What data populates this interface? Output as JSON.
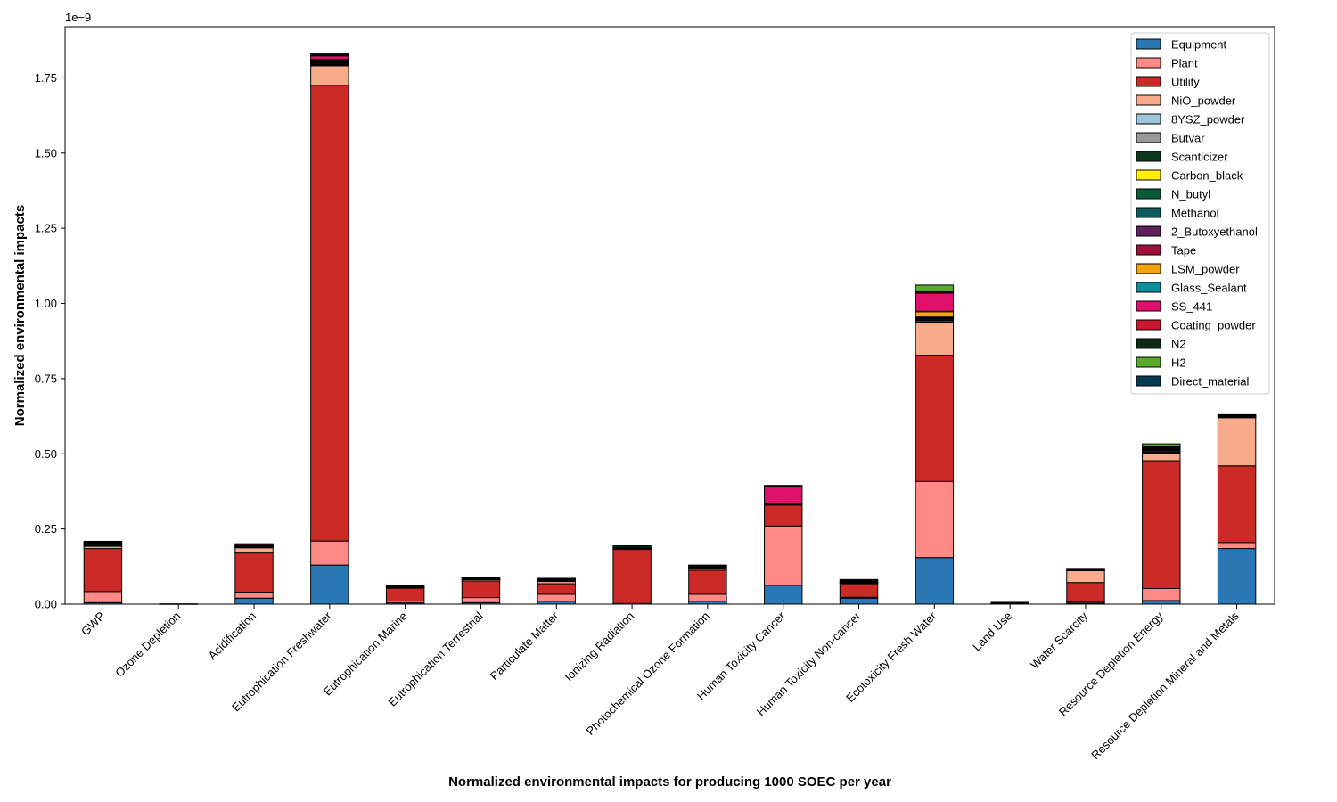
{
  "chart_data": {
    "type": "bar",
    "stacked": true,
    "title": "",
    "xlabel": "Normalized environmental impacts for producing 1000 SOEC per year",
    "ylabel": "Normalized environmental impacts",
    "y_offset_label": "1e−9",
    "y_scale_note": "values in units of 1e-9",
    "ylim": [
      0,
      1.92
    ],
    "yticks": [
      "0.00",
      "0.25",
      "0.50",
      "0.75",
      "1.00",
      "1.25",
      "1.50",
      "1.75"
    ],
    "grid": false,
    "legend_position": "top-right",
    "categories": [
      "GWP",
      "Ozone Depletion",
      "Acidification",
      "Eutrophication Freshwater",
      "Eutrophication Marine",
      "Eutrophication Terrestrial",
      "Particulate Matter",
      "Ionizing Radiation",
      "Photochemical Ozone Formation",
      "Human Toxicity Cancer",
      "Human Toxicity Non-cancer",
      "Ecotoxicity Fresh Water",
      "Land Use",
      "Water Scarcity",
      "Resource Depletion Energy",
      "Resource Depletion Mineral and Metals"
    ],
    "series": [
      {
        "name": "Equipment",
        "color": "#2a77b4",
        "values": [
          0.005,
          0.0,
          0.02,
          0.13,
          0.004,
          0.005,
          0.01,
          0.002,
          0.01,
          0.063,
          0.02,
          0.155,
          0.0,
          0.003,
          0.012,
          0.185
        ]
      },
      {
        "name": "Plant",
        "color": "#ff8a85",
        "values": [
          0.037,
          0.0,
          0.02,
          0.08,
          0.006,
          0.017,
          0.023,
          0.0,
          0.023,
          0.197,
          0.003,
          0.253,
          0.0,
          0.004,
          0.04,
          0.02
        ]
      },
      {
        "name": "Utility",
        "color": "#cc2a27",
        "values": [
          0.143,
          0.001,
          0.13,
          1.515,
          0.043,
          0.055,
          0.035,
          0.18,
          0.08,
          0.07,
          0.045,
          0.42,
          0.003,
          0.065,
          0.425,
          0.255
        ]
      },
      {
        "name": "NiO_powder",
        "color": "#f7ab8b",
        "values": [
          0.008,
          0.0,
          0.018,
          0.065,
          0.002,
          0.005,
          0.008,
          0.002,
          0.008,
          0.0,
          0.003,
          0.11,
          0.0,
          0.04,
          0.025,
          0.16
        ]
      },
      {
        "name": "8YSZ_powder",
        "color": "#9dc5dc",
        "values": [
          0.001,
          0.0,
          0.001,
          0.003,
          0.001,
          0.001,
          0.001,
          0.0,
          0.001,
          0.001,
          0.001,
          0.004,
          0.0,
          0.001,
          0.002,
          0.002
        ]
      },
      {
        "name": "Butvar",
        "color": "#999999",
        "values": [
          0.002,
          0.0,
          0.001,
          0.003,
          0.0,
          0.001,
          0.001,
          0.0,
          0.001,
          0.001,
          0.001,
          0.003,
          0.0,
          0.001,
          0.002,
          0.001
        ]
      },
      {
        "name": "Scanticizer",
        "color": "#0c3b1b",
        "values": [
          0.004,
          0.0,
          0.003,
          0.004,
          0.002,
          0.002,
          0.002,
          0.003,
          0.003,
          0.002,
          0.003,
          0.004,
          0.001,
          0.002,
          0.006,
          0.002
        ]
      },
      {
        "name": "Carbon_black",
        "color": "#ffee00",
        "values": [
          0.0,
          0.0,
          0.0,
          0.001,
          0.0,
          0.0,
          0.0,
          0.0,
          0.0,
          0.0,
          0.0,
          0.002,
          0.0,
          0.0,
          0.001,
          0.0
        ]
      },
      {
        "name": "N_butyl",
        "color": "#0a5a36",
        "values": [
          0.001,
          0.0,
          0.001,
          0.001,
          0.0,
          0.0,
          0.001,
          0.0,
          0.0,
          0.0,
          0.0,
          0.001,
          0.0,
          0.0,
          0.001,
          0.0
        ]
      },
      {
        "name": "Methanol",
        "color": "#0b5c60",
        "values": [
          0.001,
          0.0,
          0.0,
          0.001,
          0.0,
          0.0,
          0.0,
          0.0,
          0.0,
          0.0,
          0.0,
          0.001,
          0.0,
          0.0,
          0.001,
          0.0
        ]
      },
      {
        "name": "2_Butoxyethanol",
        "color": "#5e1f5a",
        "values": [
          0.0,
          0.0,
          0.0,
          0.001,
          0.0,
          0.0,
          0.0,
          0.0,
          0.0,
          0.0,
          0.0,
          0.001,
          0.0,
          0.0,
          0.0,
          0.0
        ]
      },
      {
        "name": "Tape",
        "color": "#a0103a",
        "values": [
          0.001,
          0.0,
          0.001,
          0.003,
          0.0,
          0.0,
          0.0,
          0.0,
          0.0,
          0.0,
          0.0,
          0.001,
          0.0,
          0.0,
          0.001,
          0.0
        ]
      },
      {
        "name": "LSM_powder",
        "color": "#f4a40c",
        "values": [
          0.0,
          0.0,
          0.0,
          0.003,
          0.0,
          0.0,
          0.0,
          0.0,
          0.0,
          0.001,
          0.0,
          0.018,
          0.0,
          0.0,
          0.001,
          0.001
        ]
      },
      {
        "name": "Glass_Sealant",
        "color": "#0f8f9c",
        "values": [
          0.0,
          0.0,
          0.0,
          0.001,
          0.0,
          0.0,
          0.0,
          0.0,
          0.0,
          0.0,
          0.0,
          0.001,
          0.0,
          0.0,
          0.0,
          0.0
        ]
      },
      {
        "name": "SS_441",
        "color": "#e0106c",
        "values": [
          0.003,
          0.0,
          0.004,
          0.012,
          0.002,
          0.002,
          0.003,
          0.002,
          0.002,
          0.055,
          0.002,
          0.06,
          0.0,
          0.001,
          0.003,
          0.001
        ]
      },
      {
        "name": "Coating_powder",
        "color": "#c91830",
        "values": [
          0.0,
          0.0,
          0.0,
          0.002,
          0.0,
          0.0,
          0.0,
          0.0,
          0.0,
          0.002,
          0.0,
          0.004,
          0.0,
          0.0,
          0.0,
          0.001
        ]
      },
      {
        "name": "N2",
        "color": "#0d2a14",
        "values": [
          0.003,
          0.0,
          0.002,
          0.006,
          0.002,
          0.002,
          0.002,
          0.005,
          0.002,
          0.003,
          0.004,
          0.003,
          0.002,
          0.002,
          0.003,
          0.002
        ]
      },
      {
        "name": "H2",
        "color": "#5aa82c",
        "values": [
          0.0,
          0.0,
          0.0,
          0.0,
          0.0,
          0.0,
          0.0,
          0.0,
          0.0,
          0.0,
          0.0,
          0.02,
          0.0,
          0.0,
          0.01,
          0.0
        ]
      },
      {
        "name": "Direct_material",
        "color": "#063a52",
        "values": [
          0.0,
          0.0,
          0.0,
          0.0,
          0.0,
          0.0,
          0.0,
          0.0,
          0.0,
          0.0,
          0.0,
          0.0,
          0.0,
          0.0,
          0.0,
          0.0
        ]
      }
    ]
  }
}
